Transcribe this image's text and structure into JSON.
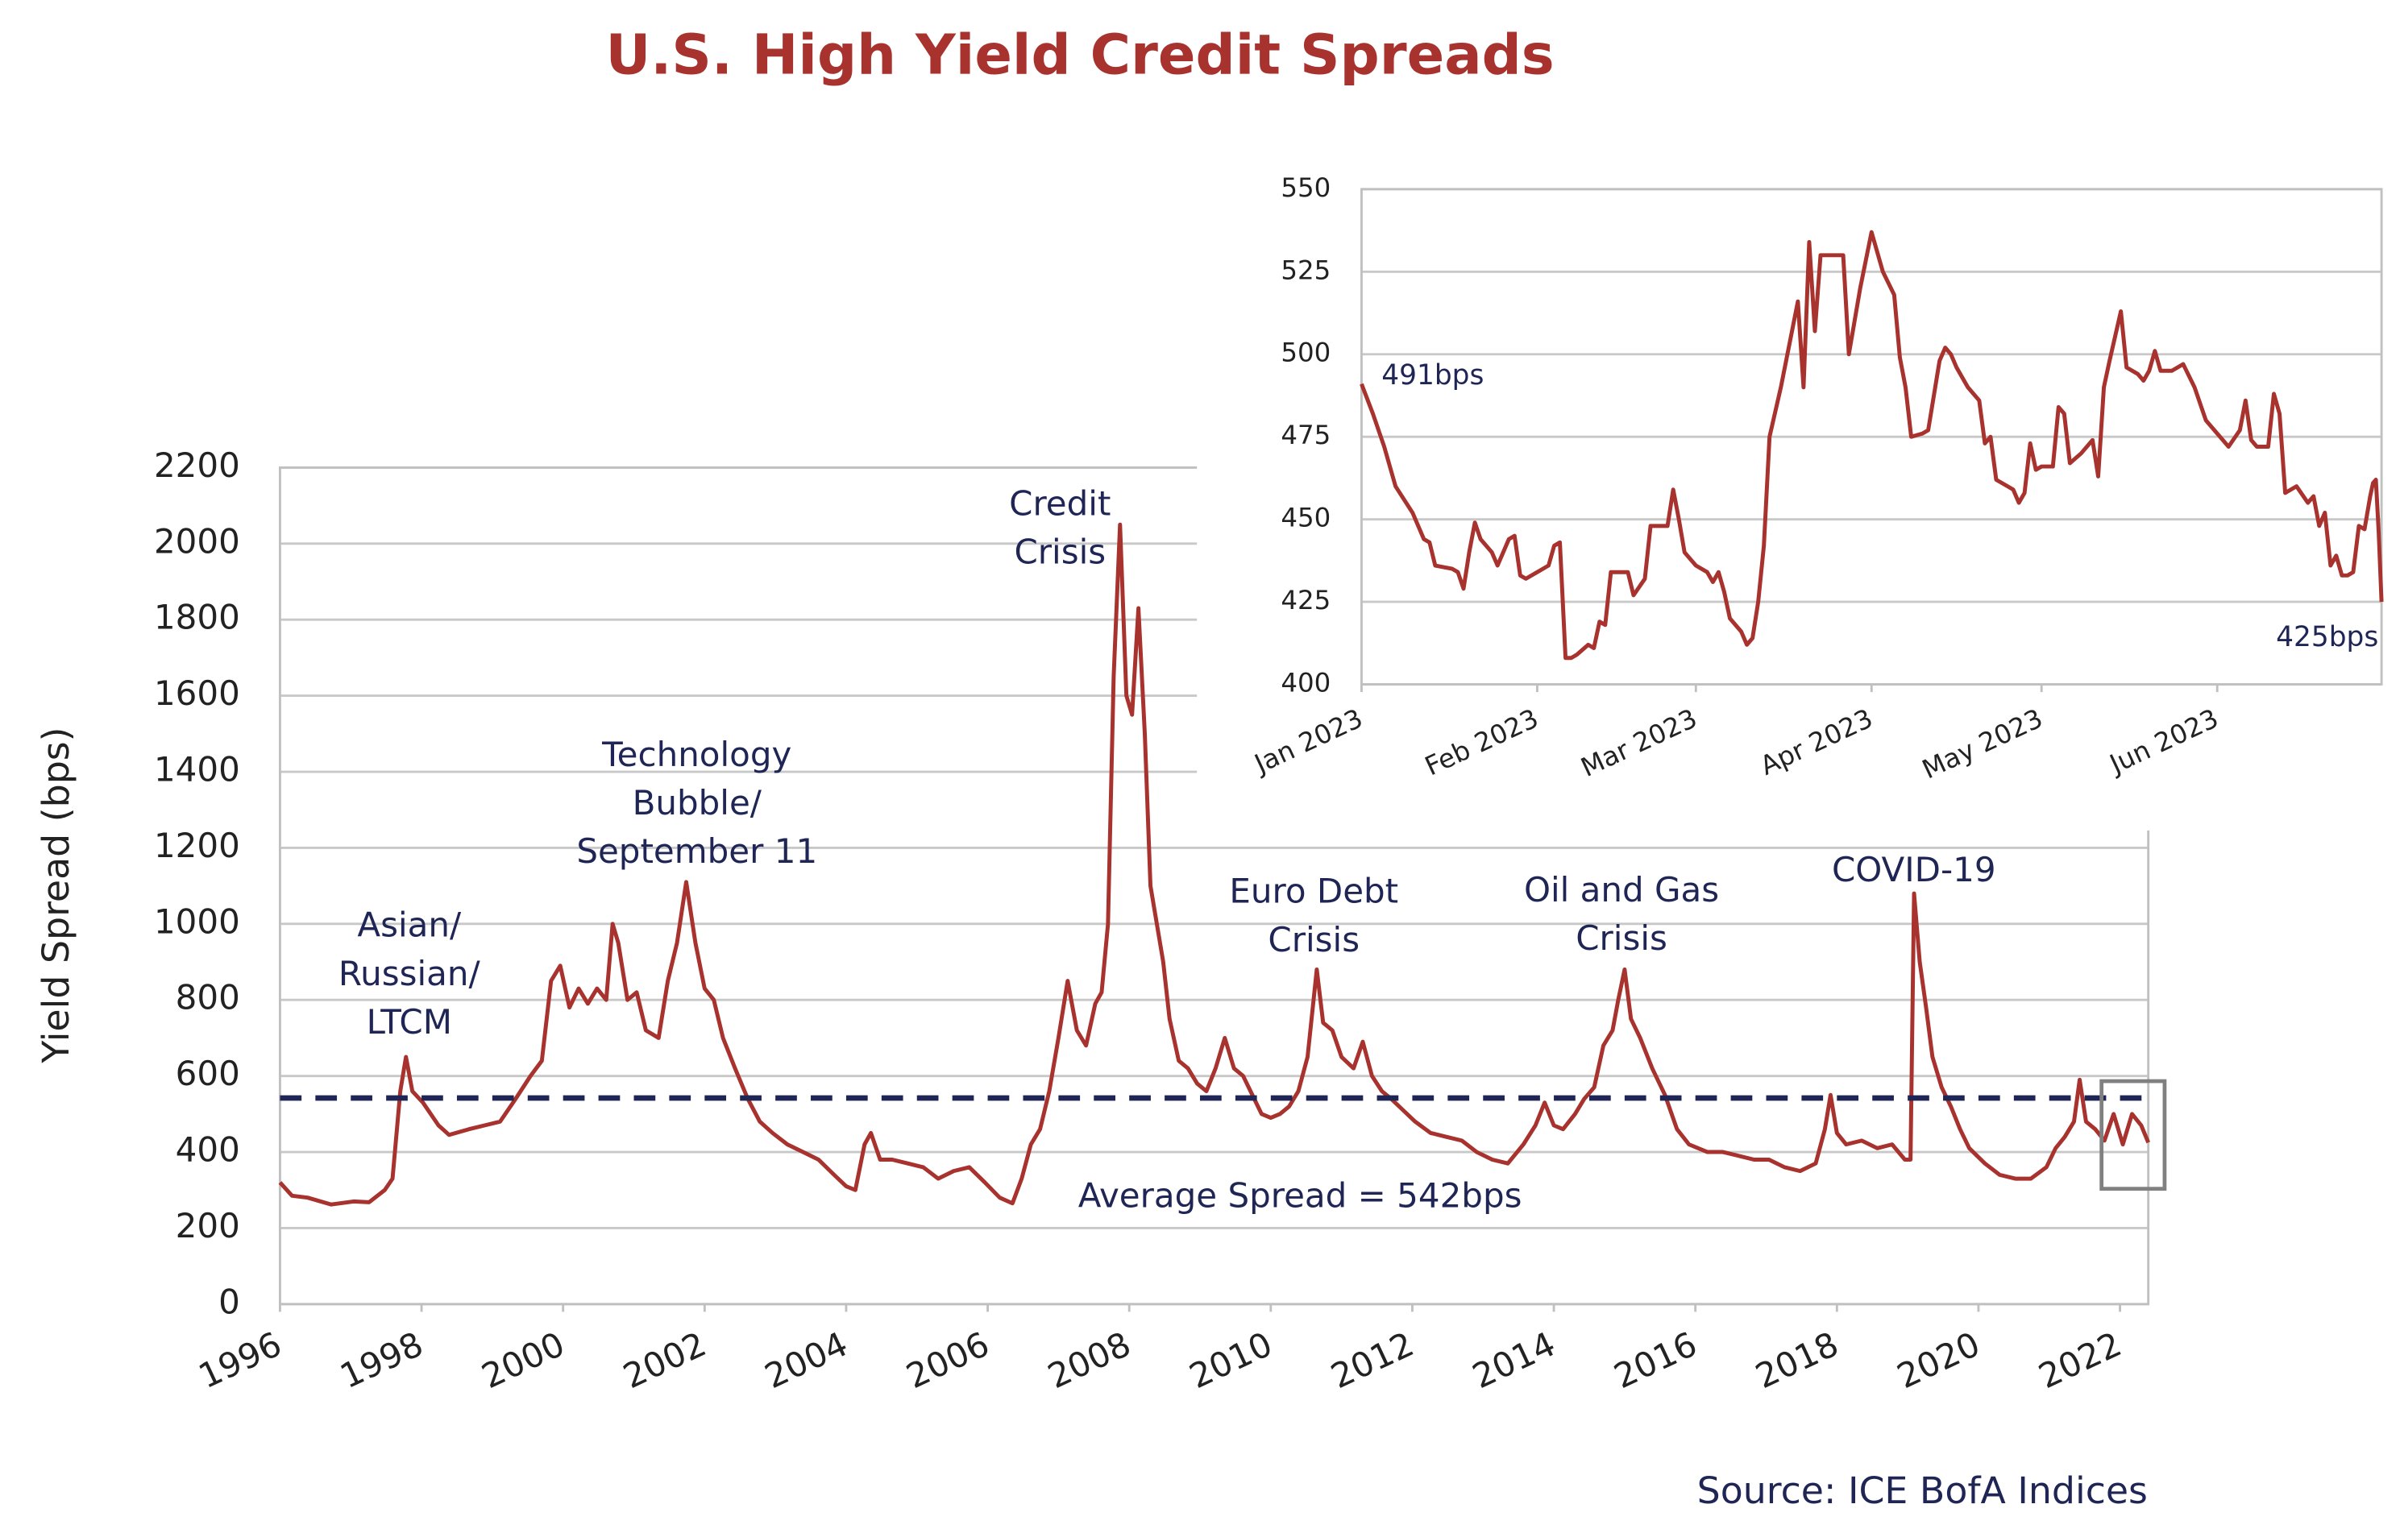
{
  "chart_data": [
    {
      "type": "line",
      "title": "U.S. High Yield Credit Spreads",
      "y_label": "Yield Spread (bps)",
      "source": "Source: ICE BofA Indices",
      "xlim": [
        1996,
        2022.4
      ],
      "xticks": [
        1996,
        1998,
        2000,
        2002,
        2004,
        2006,
        2008,
        2010,
        2012,
        2014,
        2016,
        2018,
        2020,
        2022
      ],
      "ylim": [
        0,
        2200
      ],
      "yticks": [
        0,
        200,
        400,
        600,
        800,
        1000,
        1200,
        1400,
        1600,
        1800,
        2000,
        2200
      ],
      "grid": true,
      "average": {
        "value": 542,
        "label": "Average Spread = 542bps",
        "color": "#1f2656"
      },
      "annotations": [
        {
          "lines": [
            "Asian/",
            "Russian/",
            "LTCM"
          ]
        },
        {
          "lines": [
            "Technology",
            "Bubble/",
            "September 11"
          ]
        },
        {
          "lines": [
            "Credit",
            "Crisis"
          ]
        },
        {
          "lines": [
            "Euro Debt",
            "Crisis"
          ]
        },
        {
          "lines": [
            "Oil and Gas",
            "Crisis"
          ]
        },
        {
          "lines": [
            "COVID-19"
          ]
        }
      ],
      "series": [
        {
          "color": "#a8322d",
          "x": [
            1996.0,
            1996.17,
            1996.39,
            1996.72,
            1997.04,
            1997.26,
            1997.48,
            1997.59,
            1997.7,
            1997.78,
            1997.87,
            1998.02,
            1998.24,
            1998.39,
            1998.67,
            1998.89,
            1999.11,
            1999.33,
            1999.54,
            1999.7,
            1999.83,
            1999.96,
            2000.09,
            2000.22,
            2000.35,
            2000.48,
            2000.61,
            2000.7,
            2000.78,
            2000.91,
            2001.04,
            2001.17,
            2001.35,
            2001.48,
            2001.61,
            2001.74,
            2001.87,
            2002.0,
            2002.13,
            2002.26,
            2002.43,
            2002.61,
            2002.78,
            2002.96,
            2003.17,
            2003.39,
            2003.61,
            2003.83,
            2004.0,
            2004.13,
            2004.26,
            2004.35,
            2004.48,
            2004.65,
            2004.87,
            2005.09,
            2005.3,
            2005.52,
            2005.74,
            2005.96,
            2006.17,
            2006.35,
            2006.48,
            2006.61,
            2006.74,
            2006.87,
            2007.0,
            2007.13,
            2007.26,
            2007.39,
            2007.52,
            2007.61,
            2007.7,
            2007.78,
            2007.87,
            2007.96,
            2008.04,
            2008.13,
            2008.22,
            2008.3,
            2008.39,
            2008.48,
            2008.57,
            2008.7,
            2008.83,
            2008.96,
            2009.09,
            2009.22,
            2009.35,
            2009.48,
            2009.61,
            2009.74,
            2009.87,
            2010.0,
            2010.13,
            2010.26,
            2010.39,
            2010.52,
            2010.65,
            2010.74,
            2010.87,
            2011.0,
            2011.17,
            2011.3,
            2011.43,
            2011.57,
            2011.7,
            2011.87,
            2012.04,
            2012.26,
            2012.48,
            2012.7,
            2012.91,
            2013.13,
            2013.35,
            2013.57,
            2013.74,
            2013.87,
            2014.0,
            2014.13,
            2014.3,
            2014.43,
            2014.57,
            2014.7,
            2014.83,
            2014.91,
            2015.0,
            2015.09,
            2015.22,
            2015.39,
            2015.57,
            2015.74,
            2015.91,
            2016.17,
            2016.39,
            2016.61,
            2016.83,
            2017.04,
            2017.26,
            2017.48,
            2017.7,
            2017.83,
            2017.91,
            2018.0,
            2018.13,
            2018.35,
            2018.57,
            2018.78,
            2018.96,
            2019.04,
            2019.09,
            2019.17,
            2019.26,
            2019.35,
            2019.48,
            2019.61,
            2019.74,
            2019.87,
            2020.09,
            2020.3,
            2020.52,
            2020.74,
            2020.96,
            2021.09,
            2021.22,
            2021.35,
            2021.43,
            2021.52,
            2021.65,
            2021.78,
            2021.91,
            2022.04,
            2022.17,
            2022.3,
            2022.4
          ],
          "values": [
            320,
            285,
            280,
            262,
            270,
            268,
            300,
            330,
            560,
            650,
            560,
            530,
            470,
            445,
            460,
            470,
            480,
            540,
            600,
            640,
            850,
            890,
            780,
            830,
            790,
            830,
            800,
            1000,
            950,
            800,
            820,
            720,
            700,
            850,
            950,
            1110,
            950,
            830,
            800,
            700,
            620,
            540,
            480,
            450,
            420,
            400,
            380,
            340,
            310,
            300,
            420,
            450,
            380,
            380,
            370,
            360,
            330,
            350,
            360,
            320,
            280,
            265,
            330,
            420,
            460,
            560,
            700,
            850,
            720,
            680,
            790,
            820,
            1000,
            1650,
            2050,
            1600,
            1550,
            1830,
            1500,
            1100,
            1000,
            900,
            750,
            640,
            620,
            580,
            560,
            620,
            700,
            620,
            600,
            550,
            500,
            490,
            500,
            520,
            560,
            650,
            880,
            740,
            720,
            650,
            620,
            690,
            600,
            560,
            540,
            510,
            480,
            450,
            440,
            430,
            400,
            380,
            370,
            420,
            470,
            530,
            470,
            460,
            500,
            540,
            570,
            680,
            720,
            800,
            880,
            750,
            700,
            620,
            550,
            460,
            420,
            400,
            400,
            390,
            380,
            380,
            360,
            350,
            370,
            460,
            550,
            450,
            420,
            430,
            410,
            420,
            380,
            380,
            1080,
            900,
            780,
            650,
            570,
            520,
            460,
            410,
            370,
            340,
            330,
            330,
            360,
            410,
            440,
            480,
            590,
            480,
            460,
            430,
            500,
            420,
            500,
            470,
            425
          ]
        }
      ]
    },
    {
      "type": "line",
      "xlim": [
        0,
        180
      ],
      "xticks": [
        {
          "value": 0,
          "label": "Jan 2023"
        },
        {
          "value": 31,
          "label": "Feb 2023"
        },
        {
          "value": 59,
          "label": "Mar 2023"
        },
        {
          "value": 90,
          "label": "Apr 2023"
        },
        {
          "value": 120,
          "label": "May 2023"
        },
        {
          "value": 151,
          "label": "Jun 2023"
        }
      ],
      "ylim": [
        400,
        550
      ],
      "yticks": [
        400,
        425,
        450,
        475,
        500,
        525,
        550
      ],
      "grid": true,
      "annotations": [
        "491bps",
        "425bps"
      ],
      "series": [
        {
          "color": "#a8322d",
          "x": [
            0,
            2,
            4,
            6,
            9,
            11,
            12,
            13,
            16,
            17,
            18,
            19,
            20,
            21,
            23,
            24,
            26,
            27,
            28,
            29,
            32,
            33,
            34,
            35,
            36,
            37,
            38,
            40,
            41,
            42,
            43,
            44,
            47,
            48,
            50,
            51,
            54,
            55,
            56,
            57,
            59,
            61,
            62,
            63,
            64,
            65,
            67,
            68,
            69,
            70,
            71,
            72,
            74,
            77,
            78,
            79,
            80,
            81,
            84,
            85,
            86,
            88,
            90,
            92,
            94,
            95,
            96,
            97,
            99,
            100,
            102,
            103,
            104,
            105,
            107,
            109,
            110,
            111,
            112,
            114,
            115,
            116,
            117,
            118,
            119,
            120,
            122,
            123,
            124,
            125,
            127,
            129,
            130,
            131,
            132,
            134,
            135,
            137,
            138,
            139,
            140,
            141,
            143,
            145,
            147,
            149,
            151,
            153,
            155,
            156,
            157,
            158,
            160,
            161,
            162,
            163,
            165,
            167,
            168,
            169,
            170,
            171,
            172,
            173,
            174,
            175,
            176,
            177,
            178,
            178.5,
            179,
            179.5,
            180
          ],
          "values": [
            491,
            482,
            472,
            460,
            452,
            444,
            443,
            436,
            435,
            434,
            429,
            440,
            449,
            444,
            440,
            436,
            444,
            445,
            433,
            432,
            435,
            436,
            442,
            443,
            408,
            408,
            409,
            412,
            411,
            419,
            418,
            434,
            434,
            427,
            432,
            448,
            448,
            459,
            450,
            440,
            436,
            434,
            431,
            434,
            428,
            420,
            416,
            412,
            414,
            425,
            442,
            475,
            490,
            516,
            490,
            534,
            507,
            530,
            530,
            530,
            500,
            520,
            537,
            525,
            518,
            499,
            490,
            475,
            476,
            477,
            498,
            502,
            500,
            496,
            490,
            486,
            473,
            475,
            462,
            460,
            459,
            455,
            458,
            473,
            465,
            466,
            466,
            484,
            482,
            467,
            470,
            474,
            463,
            490,
            498,
            513,
            496,
            494,
            492,
            495,
            501,
            495,
            495,
            497,
            490,
            480,
            476,
            472,
            477,
            486,
            474,
            472,
            472,
            488,
            482,
            458,
            460,
            455,
            457,
            448,
            452,
            436,
            439,
            433,
            433,
            434,
            448,
            447,
            457,
            461,
            462,
            446,
            425
          ]
        }
      ]
    }
  ]
}
